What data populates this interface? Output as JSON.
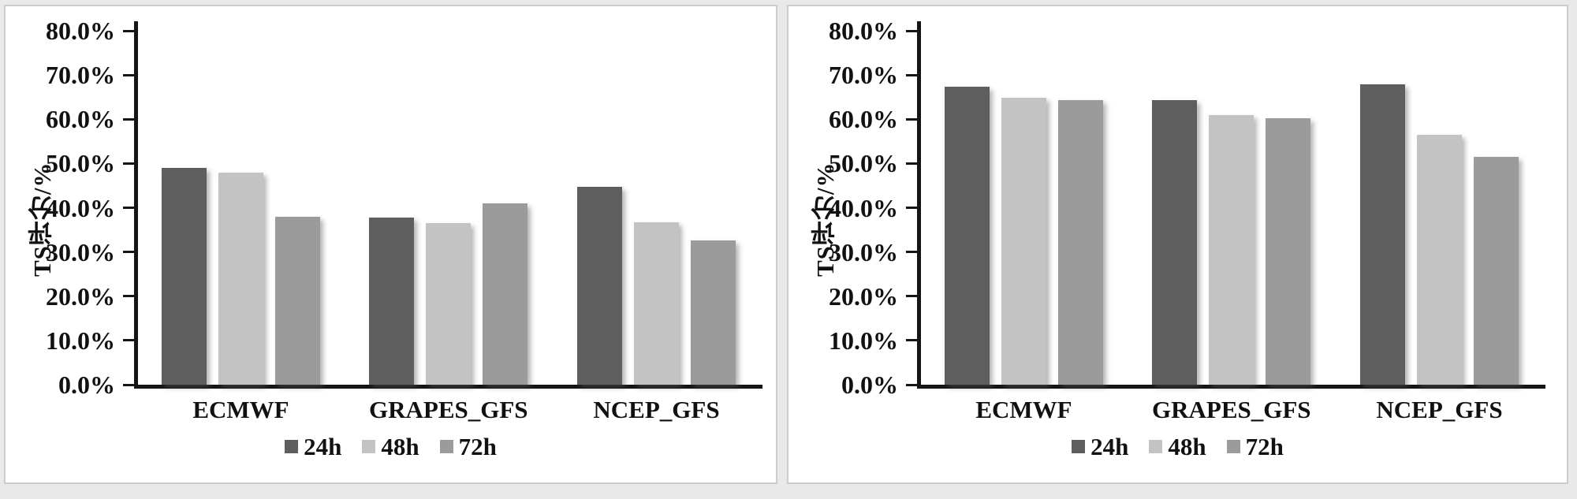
{
  "figure_background": "#e9e9e9",
  "panel_background": "#ffffff",
  "panel_border_color": "#cccccc",
  "axis_color": "#151515",
  "text_color": "#111111",
  "series_colors": {
    "24h": "#5e5e5e",
    "48h": "#c3c3c3",
    "72h": "#9b9b9b"
  },
  "chart_data": [
    {
      "type": "bar",
      "title": "",
      "xlabel": "",
      "ylabel": "TS评分/%",
      "ylim": [
        0,
        80
      ],
      "y_tick_step": 10,
      "y_tick_labels": [
        "80.0%",
        "70.0%",
        "60.0%",
        "50.0%",
        "40.0%",
        "30.0%",
        "20.0%",
        "10.0%",
        "0.0%"
      ],
      "grid": false,
      "legend_position": "bottom",
      "categories": [
        "ECMWF",
        "GRAPES_GFS",
        "NCEP_GFS"
      ],
      "series": [
        {
          "name": "24h",
          "color": "#5e5e5e",
          "values": [
            49.0,
            37.8,
            44.8
          ]
        },
        {
          "name": "48h",
          "color": "#c3c3c3",
          "values": [
            48.0,
            36.5,
            36.7
          ]
        },
        {
          "name": "72h",
          "color": "#9b9b9b",
          "values": [
            38.0,
            41.0,
            32.6
          ]
        }
      ]
    },
    {
      "type": "bar",
      "title": "",
      "xlabel": "",
      "ylabel": "TS评分/%",
      "ylim": [
        0,
        80
      ],
      "y_tick_step": 10,
      "y_tick_labels": [
        "80.0%",
        "70.0%",
        "60.0%",
        "50.0%",
        "40.0%",
        "30.0%",
        "20.0%",
        "10.0%",
        "0.0%"
      ],
      "grid": false,
      "legend_position": "bottom",
      "categories": [
        "ECMWF",
        "GRAPES_GFS",
        "NCEP_GFS"
      ],
      "series": [
        {
          "name": "24h",
          "color": "#5e5e5e",
          "values": [
            67.3,
            64.3,
            67.9
          ]
        },
        {
          "name": "48h",
          "color": "#c3c3c3",
          "values": [
            64.8,
            61.0,
            56.4
          ]
        },
        {
          "name": "72h",
          "color": "#9b9b9b",
          "values": [
            64.3,
            60.3,
            51.5
          ]
        }
      ]
    }
  ]
}
